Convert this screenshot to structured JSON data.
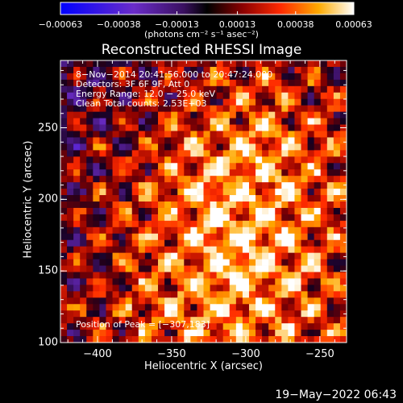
{
  "chart_data": {
    "type": "heatmap",
    "title": "Reconstructed RHESSI Image",
    "xlabel": "Heliocentric X (arcsec)",
    "ylabel": "Heliocentric Y (arcsec)",
    "xlim": [
      -425,
      -232
    ],
    "ylim": [
      100,
      297
    ],
    "x_ticks": [
      "−400",
      "−350",
      "−300",
      "−250"
    ],
    "x_tick_values": [
      -400,
      -350,
      -300,
      -250
    ],
    "y_ticks": [
      "250",
      "200",
      "150",
      "100"
    ],
    "y_tick_values": [
      250,
      200,
      150,
      100
    ],
    "colorbar": {
      "tick_labels": [
        "−0.00063",
        "−0.00038",
        "−0.00013",
        "0.00013",
        "0.00038",
        "0.00063"
      ],
      "tick_values": [
        -0.00063,
        -0.00038,
        -0.00013,
        0.00013,
        0.00038,
        0.00063
      ],
      "units": "(photons cm⁻² s⁻¹ asec⁻²)"
    },
    "peak_position": [
      -307,
      183
    ],
    "annotations": [
      "8−Nov−2014 20:41:56.000 to 20:47:24.000",
      "Detectors: 3F 6F 9F, Att 0",
      "Energy Range: 12.0 − 25.0 keV",
      "Clean     Total counts: 2.53E+03"
    ],
    "peak_label": "Position of Peak = [−307,183]"
  },
  "footer": {
    "timestamp": "19−May−2022 06:43"
  }
}
